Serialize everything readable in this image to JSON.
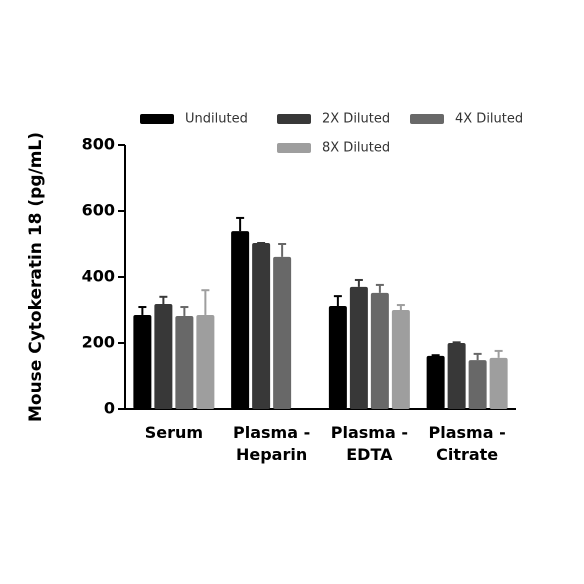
{
  "chart_data": {
    "type": "bar",
    "y_label": "Mouse Cytokeratin 18 (pg/mL)",
    "categories": [
      "Serum",
      "Plasma -\nHeparin",
      "Plasma -\nEDTA",
      "Plasma -\nCitrate"
    ],
    "series": [
      {
        "name": "Undiluted",
        "color": "#000000",
        "values": [
          285,
          539,
          312,
          161
        ],
        "errors": [
          24,
          40,
          30,
          2
        ]
      },
      {
        "name": "2X Diluted",
        "color": "#383838",
        "values": [
          318,
          503,
          370,
          200
        ],
        "errors": [
          22,
          0,
          21,
          2
        ]
      },
      {
        "name": "4X Diluted",
        "color": "#686868",
        "values": [
          282,
          461,
          352,
          148
        ],
        "errors": [
          27,
          39,
          24,
          19
        ]
      },
      {
        "name": "8X Diluted",
        "color": "#9e9e9e",
        "values": [
          285,
          null,
          300,
          155
        ],
        "errors": [
          75,
          null,
          15,
          21
        ]
      }
    ],
    "ylim": [
      0,
      800
    ],
    "yticks": [
      0,
      200,
      400,
      600,
      800
    ]
  }
}
